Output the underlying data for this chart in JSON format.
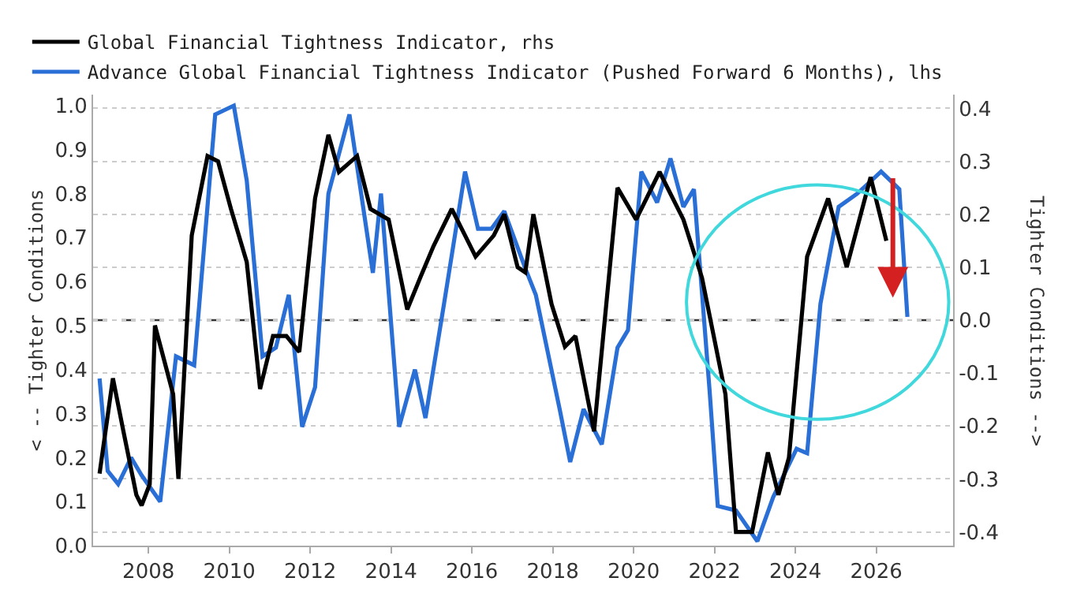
{
  "chart_data": {
    "type": "line",
    "ylabel": "< -- Tighter Conditions",
    "y2label": "Tighter Conditions -->",
    "xlim": [
      2006.63,
      2027.9
    ],
    "xticks": [
      2008,
      2010,
      2012,
      2014,
      2016,
      2018,
      2020,
      2022,
      2024,
      2026
    ],
    "ylim": [
      0,
      1.025
    ],
    "yticks": [
      {
        "value": 0,
        "label": "0.0"
      },
      0.1,
      0.2,
      0.3,
      0.4,
      0.5,
      0.6,
      0.7,
      0.8,
      0.9,
      {
        "value": 1,
        "label": "1.0"
      }
    ],
    "y2lim": [
      -0.426,
      0.426
    ],
    "y2ticks": [
      -0.4,
      -0.3,
      -0.2,
      -0.1,
      {
        "value": 0,
        "label": "0.0"
      },
      0.1,
      0.2,
      0.3,
      0.4
    ],
    "grid": "y2",
    "legend": "top left",
    "marker": "none",
    "line_style": "solid",
    "ref_lines": [
      {
        "axis": "y2",
        "value": 0,
        "color": "#333333",
        "line_style": "dashed"
      }
    ],
    "series": [
      {
        "name": "Global Financial Tightness Indicator, rhs",
        "color": "#000000",
        "axis": "y2",
        "x": [
          2006.79,
          2007.12,
          2007.38,
          2007.7,
          2007.83,
          2008.03,
          2008.16,
          2008.61,
          2008.74,
          2009.07,
          2009.46,
          2009.72,
          2010.04,
          2010.43,
          2010.76,
          2011.08,
          2011.41,
          2011.73,
          2012.12,
          2012.45,
          2012.71,
          2013.16,
          2013.49,
          2013.94,
          2014.4,
          2014.72,
          2015.05,
          2015.5,
          2015.83,
          2016.09,
          2016.54,
          2016.8,
          2017.13,
          2017.32,
          2017.52,
          2017.97,
          2018.3,
          2018.56,
          2019.02,
          2019.6,
          2020.06,
          2020.64,
          2021.23,
          2021.69,
          2022.27,
          2022.53,
          2022.93,
          2023.32,
          2023.58,
          2023.84,
          2024.29,
          2024.81,
          2025.27,
          2025.86,
          2026.25
        ],
        "values": [
          -0.29,
          -0.11,
          -0.21,
          -0.33,
          -0.35,
          -0.31,
          -0.01,
          -0.14,
          -0.3,
          0.16,
          0.31,
          0.3,
          0.21,
          0.11,
          -0.13,
          -0.03,
          -0.03,
          -0.06,
          0.23,
          0.35,
          0.28,
          0.31,
          0.21,
          0.19,
          0.02,
          0.08,
          0.14,
          0.21,
          0.16,
          0.12,
          0.16,
          0.2,
          0.1,
          0.09,
          0.2,
          0.03,
          -0.05,
          -0.03,
          -0.21,
          0.25,
          0.19,
          0.28,
          0.19,
          0.08,
          -0.14,
          -0.4,
          -0.4,
          -0.25,
          -0.33,
          -0.26,
          0.12,
          0.23,
          0.1,
          0.27,
          0.15
        ]
      },
      {
        "name": "Advance Global Financial Tightness Indicator (Pushed Forward 6 Months), lhs",
        "color": "#2a6fd6",
        "x": [
          2006.79,
          2006.99,
          2007.25,
          2007.57,
          2007.83,
          2008.29,
          2008.68,
          2009.13,
          2009.65,
          2010.11,
          2010.43,
          2010.82,
          2011.15,
          2011.47,
          2011.8,
          2012.12,
          2012.45,
          2012.97,
          2013.55,
          2013.75,
          2014.2,
          2014.59,
          2014.85,
          2015.31,
          2015.83,
          2016.15,
          2016.48,
          2016.8,
          2017.32,
          2017.58,
          2018.17,
          2018.43,
          2018.76,
          2019.21,
          2019.6,
          2019.86,
          2020.19,
          2020.58,
          2020.91,
          2021.23,
          2021.49,
          2021.88,
          2022.08,
          2022.53,
          2023.06,
          2023.45,
          2024.03,
          2024.29,
          2024.62,
          2025.07,
          2025.53,
          2026.12,
          2026.57,
          2026.77
        ],
        "values": [
          0.38,
          0.17,
          0.14,
          0.2,
          0.16,
          0.1,
          0.43,
          0.41,
          0.98,
          1.0,
          0.83,
          0.43,
          0.45,
          0.57,
          0.27,
          0.36,
          0.8,
          0.98,
          0.62,
          0.8,
          0.27,
          0.4,
          0.29,
          0.55,
          0.85,
          0.72,
          0.72,
          0.76,
          0.63,
          0.57,
          0.31,
          0.19,
          0.31,
          0.23,
          0.45,
          0.49,
          0.85,
          0.78,
          0.88,
          0.77,
          0.81,
          0.35,
          0.09,
          0.08,
          0.01,
          0.11,
          0.22,
          0.21,
          0.55,
          0.77,
          0.8,
          0.85,
          0.81,
          0.52
        ]
      }
    ]
  }
}
